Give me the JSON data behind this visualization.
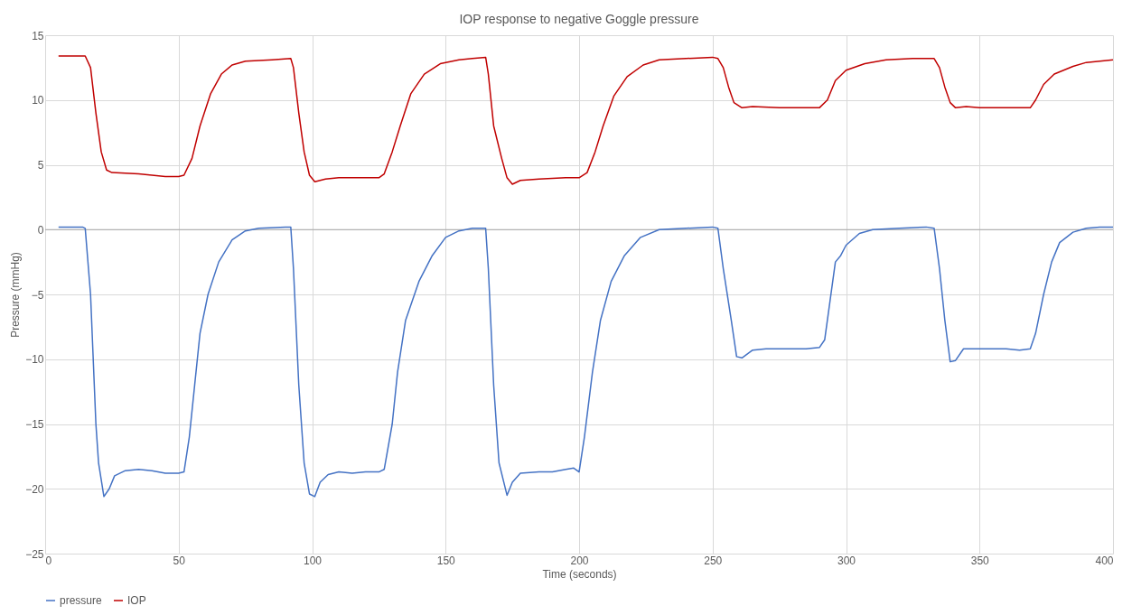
{
  "chart_data": {
    "type": "line",
    "title": "IOP response to negative Goggle pressure",
    "xlabel": "Time (seconds)",
    "ylabel": "Pressure (mmHg)",
    "xlim": [
      0,
      400
    ],
    "xticks": [
      0,
      50,
      100,
      150,
      200,
      250,
      300,
      350,
      400
    ],
    "ylim": [
      -25,
      15
    ],
    "yticks": [
      -25,
      -20,
      -15,
      -10,
      -5,
      0,
      5,
      10,
      15
    ],
    "grid": true,
    "legend": "bottom",
    "line_style": "solid",
    "marker": "none",
    "ref_lines": [
      {
        "axis": "y",
        "value": 0,
        "color": "#a6a6a6"
      }
    ],
    "series": [
      {
        "name": "pressure",
        "color": "#4472c4",
        "x": [
          5,
          14,
          15,
          17,
          19,
          20,
          22,
          24,
          26,
          30,
          35,
          40,
          45,
          50,
          52,
          54,
          56,
          58,
          61,
          65,
          70,
          75,
          80,
          90,
          92,
          93,
          95,
          97,
          99,
          101,
          103,
          106,
          110,
          115,
          120,
          125,
          127,
          130,
          132,
          135,
          140,
          145,
          150,
          155,
          160,
          165,
          166,
          168,
          170,
          173,
          175,
          178,
          185,
          190,
          195,
          198,
          200,
          202,
          205,
          208,
          212,
          217,
          223,
          230,
          240,
          250,
          252,
          254,
          257,
          259,
          261,
          265,
          270,
          280,
          285,
          290,
          292,
          294,
          296,
          298,
          300,
          305,
          310,
          320,
          330,
          333,
          335,
          337,
          339,
          341,
          344,
          350,
          360,
          365,
          369,
          371,
          374,
          377,
          380,
          385,
          390,
          395,
          400
        ],
        "values": [
          0.2,
          0.2,
          0.1,
          -5,
          -15,
          -18,
          -20.6,
          -20,
          -19,
          -18.6,
          -18.5,
          -18.6,
          -18.8,
          -18.8,
          -18.7,
          -16,
          -12,
          -8,
          -5,
          -2.5,
          -0.8,
          -0.1,
          0.1,
          0.2,
          0.2,
          -3,
          -12,
          -18,
          -20.4,
          -20.6,
          -19.5,
          -18.9,
          -18.7,
          -18.8,
          -18.7,
          -18.7,
          -18.5,
          -15,
          -11,
          -7,
          -4,
          -2,
          -0.6,
          -0.1,
          0.1,
          0.1,
          -3,
          -12,
          -18,
          -20.5,
          -19.5,
          -18.8,
          -18.7,
          -18.7,
          -18.5,
          -18.4,
          -18.7,
          -16,
          -11,
          -7,
          -4,
          -2,
          -0.6,
          0,
          0.1,
          0.2,
          0.1,
          -3,
          -7,
          -9.8,
          -9.9,
          -9.3,
          -9.2,
          -9.2,
          -9.2,
          -9.1,
          -8.5,
          -5.5,
          -2.5,
          -2,
          -1.2,
          -0.3,
          0,
          0.1,
          0.2,
          0.1,
          -3,
          -7,
          -10.2,
          -10.1,
          -9.2,
          -9.2,
          -9.2,
          -9.3,
          -9.2,
          -8,
          -5,
          -2.5,
          -1,
          -0.2,
          0.1,
          0.2,
          0.2
        ]
      },
      {
        "name": "IOP",
        "color": "#c00000",
        "x": [
          5,
          15,
          17,
          19,
          21,
          23,
          25,
          35,
          45,
          50,
          52,
          55,
          58,
          62,
          66,
          70,
          75,
          85,
          92,
          93,
          95,
          97,
          99,
          101,
          105,
          110,
          120,
          125,
          127,
          130,
          133,
          137,
          142,
          148,
          155,
          160,
          165,
          166,
          168,
          171,
          173,
          175,
          178,
          185,
          195,
          200,
          203,
          206,
          209,
          213,
          218,
          224,
          230,
          240,
          250,
          252,
          254,
          256,
          258,
          261,
          265,
          275,
          285,
          290,
          293,
          296,
          300,
          307,
          315,
          325,
          333,
          335,
          337,
          339,
          341,
          345,
          350,
          360,
          369,
          371,
          374,
          378,
          385,
          390,
          395,
          400
        ],
        "values": [
          13.4,
          13.4,
          12.5,
          9,
          6,
          4.6,
          4.4,
          4.3,
          4.1,
          4.1,
          4.2,
          5.5,
          8,
          10.5,
          12,
          12.7,
          13,
          13.1,
          13.2,
          12.5,
          9,
          6,
          4.2,
          3.7,
          3.9,
          4.0,
          4.0,
          4.0,
          4.3,
          6,
          8,
          10.5,
          12,
          12.8,
          13.1,
          13.2,
          13.3,
          12,
          8,
          5.5,
          4,
          3.5,
          3.8,
          3.9,
          4.0,
          4.0,
          4.4,
          6,
          8,
          10.3,
          11.8,
          12.7,
          13.1,
          13.2,
          13.3,
          13.2,
          12.5,
          11,
          9.8,
          9.4,
          9.5,
          9.4,
          9.4,
          9.4,
          10,
          11.5,
          12.3,
          12.8,
          13.1,
          13.2,
          13.2,
          12.5,
          11,
          9.8,
          9.4,
          9.5,
          9.4,
          9.4,
          9.4,
          10,
          11.2,
          12,
          12.6,
          12.9,
          13,
          13.1
        ]
      }
    ]
  }
}
